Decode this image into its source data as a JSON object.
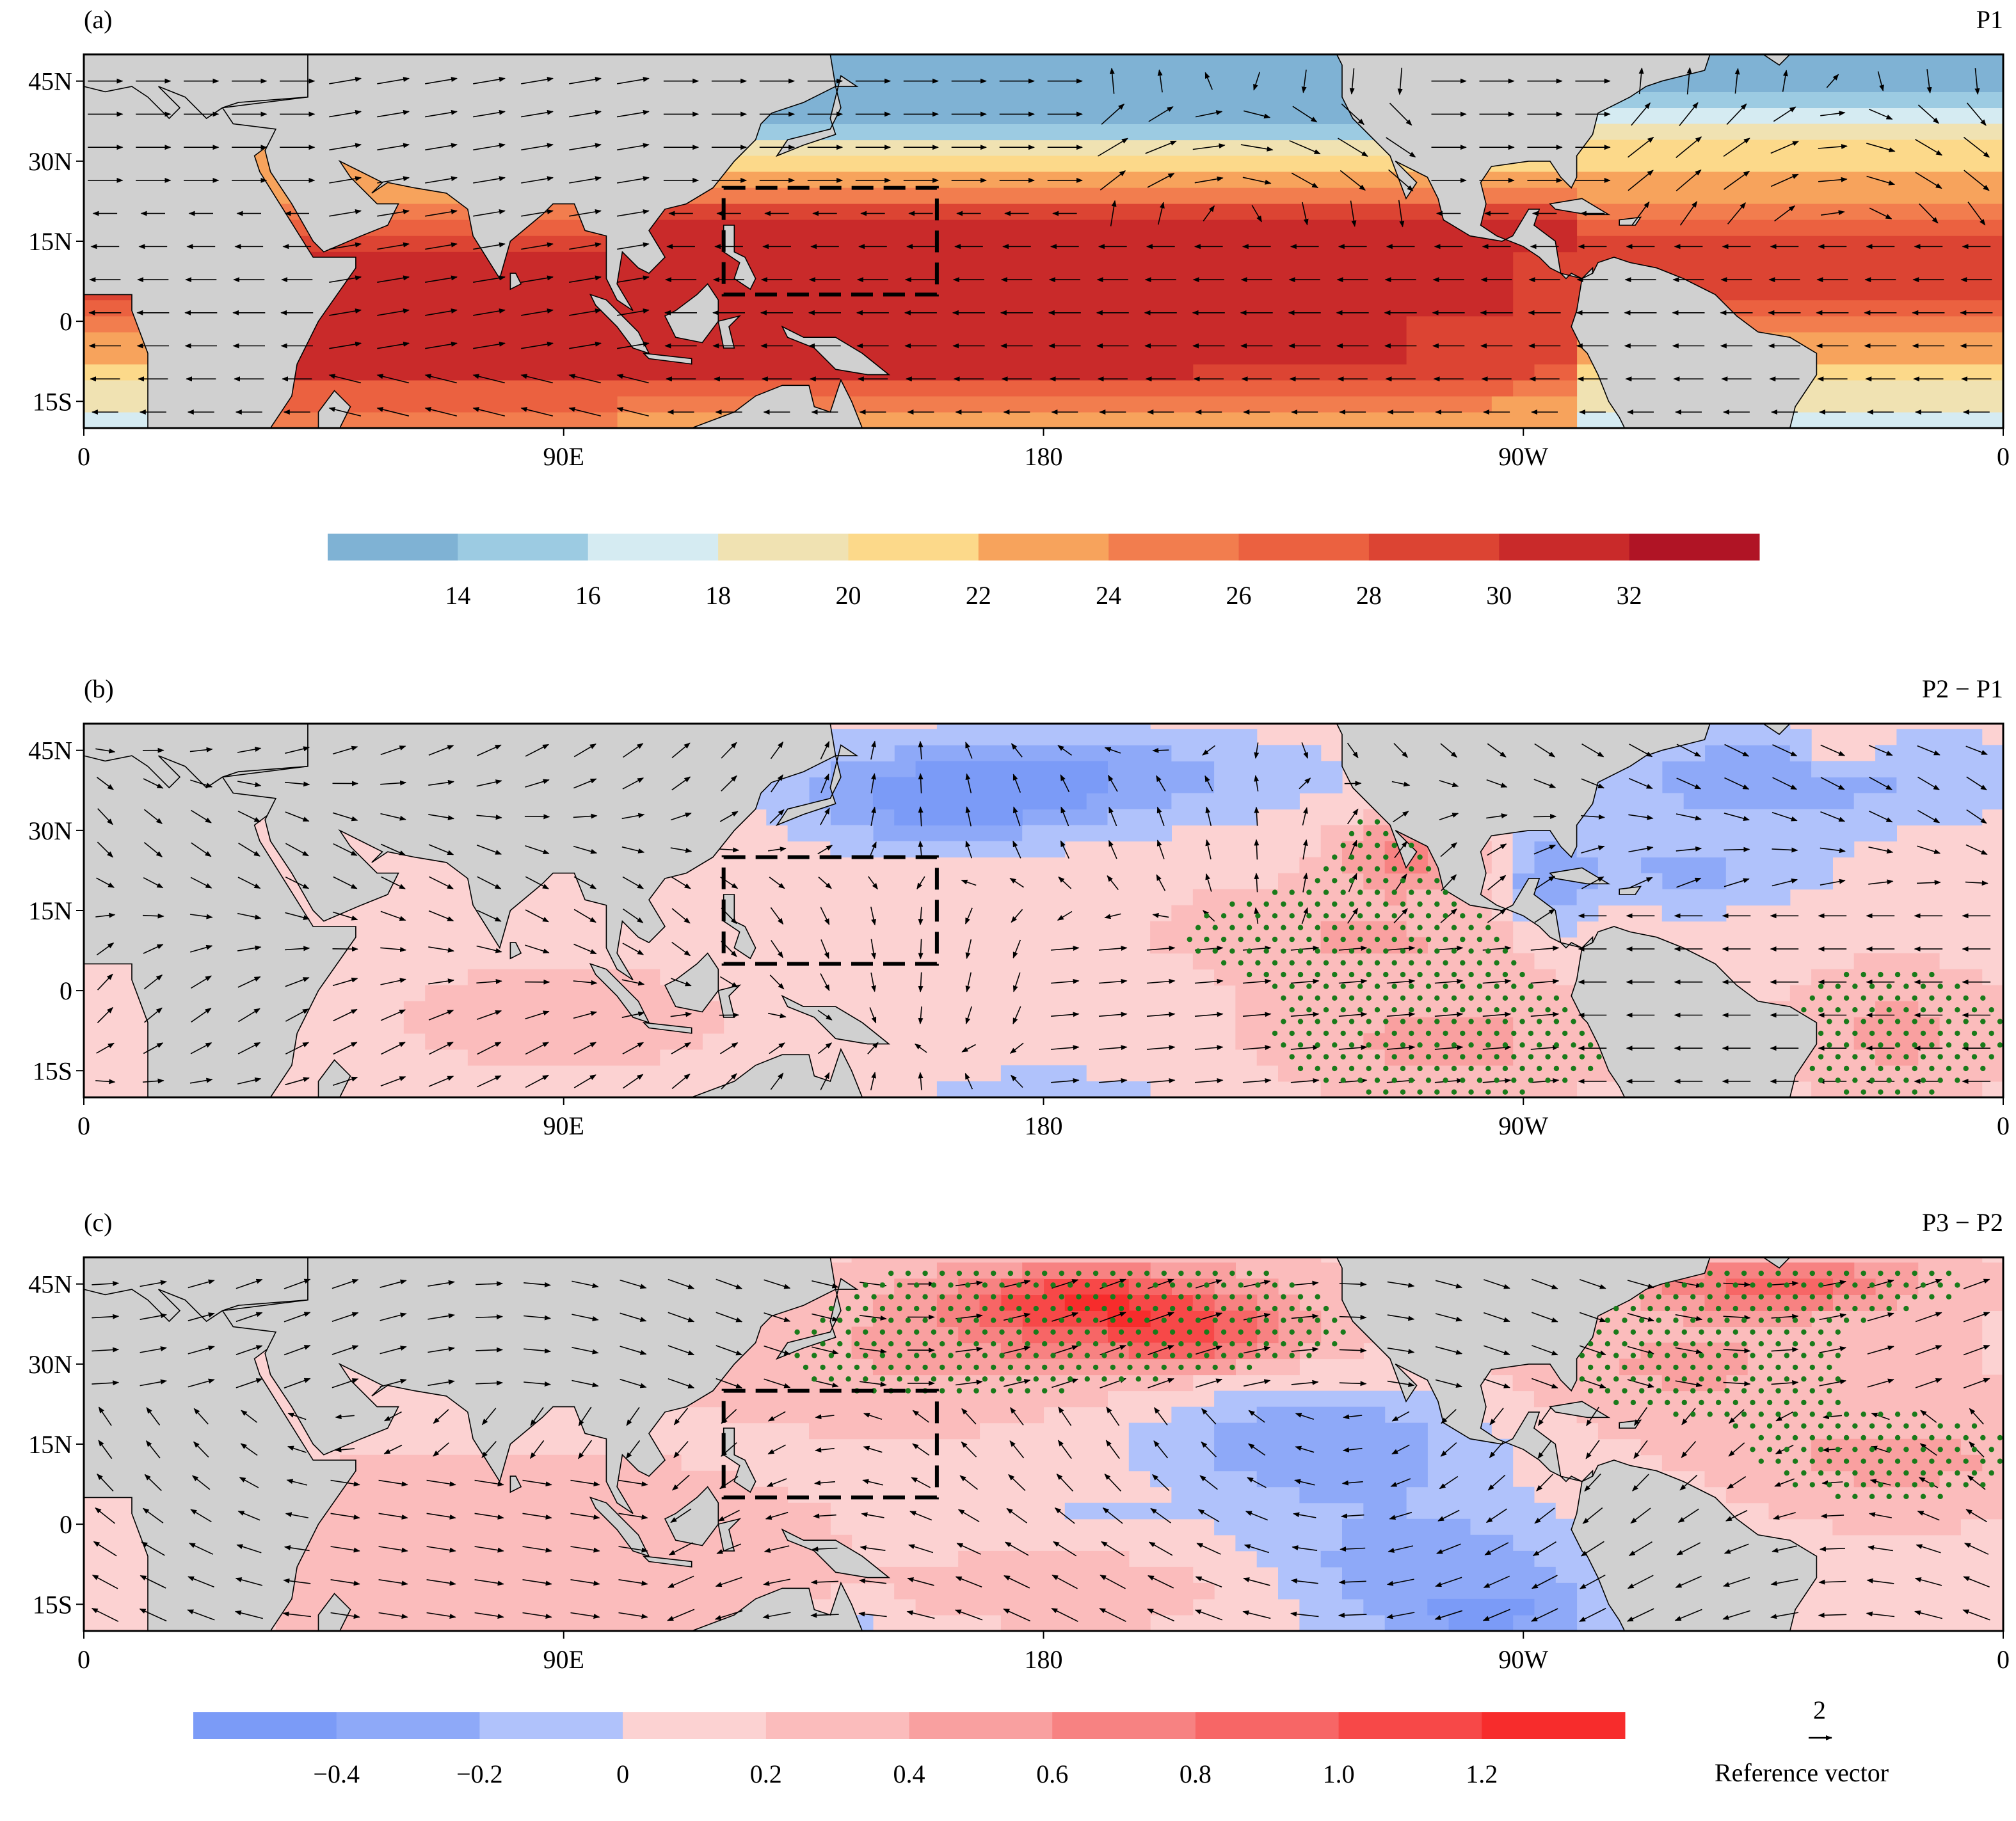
{
  "panels": [
    {
      "letter": "(a)",
      "label": "P1",
      "lon_ticks": [
        "0",
        "90E",
        "180",
        "90W",
        "0"
      ],
      "lat_ticks": [
        "45N",
        "30N",
        "15N",
        "0",
        "15S"
      ],
      "field": "sst",
      "box": {
        "lon": [
          120,
          160
        ],
        "lat": [
          5,
          25
        ]
      }
    },
    {
      "letter": "(b)",
      "label": "P2 − P1",
      "lon_ticks": [
        "0",
        "90E",
        "180",
        "90W",
        "0"
      ],
      "lat_ticks": [
        "45N",
        "30N",
        "15N",
        "0",
        "15S"
      ],
      "field": "diff1",
      "box": {
        "lon": [
          120,
          160
        ],
        "lat": [
          5,
          25
        ]
      }
    },
    {
      "letter": "(c)",
      "label": "P3 − P2",
      "lon_ticks": [
        "0",
        "90E",
        "180",
        "90W",
        "0"
      ],
      "lat_ticks": [
        "45N",
        "30N",
        "15N",
        "0",
        "15S"
      ],
      "field": "diff2",
      "box": {
        "lon": [
          120,
          160
        ],
        "lat": [
          5,
          25
        ]
      }
    }
  ],
  "colorbar_sst": {
    "labels": [
      "14",
      "16",
      "18",
      "20",
      "22",
      "24",
      "26",
      "28",
      "30",
      "32"
    ],
    "colors": [
      "#7fb2d4",
      "#9ccbe2",
      "#d5ebf2",
      "#f0e2b2",
      "#fcd98a",
      "#f7a35c",
      "#f27d4e",
      "#eb6140",
      "#dc4433",
      "#c92a2a",
      "#b01425"
    ]
  },
  "colorbar_diff": {
    "labels": [
      "−0.4",
      "−0.2",
      "0",
      "0.2",
      "0.4",
      "0.6",
      "0.8",
      "1.0",
      "1.2"
    ],
    "colors": [
      "#7b9bf7",
      "#8ea9f8",
      "#b0c2fb",
      "#fcd2d2",
      "#fbbcbc",
      "#f9a0a0",
      "#f78282",
      "#f76666",
      "#f74848",
      "#f72c2c"
    ]
  },
  "reference_vector": {
    "value": "2",
    "label": "Reference vector"
  },
  "colors": {
    "land": "#d0d0d0",
    "stipple": "#1a7a1a",
    "frame": "#000000"
  }
}
